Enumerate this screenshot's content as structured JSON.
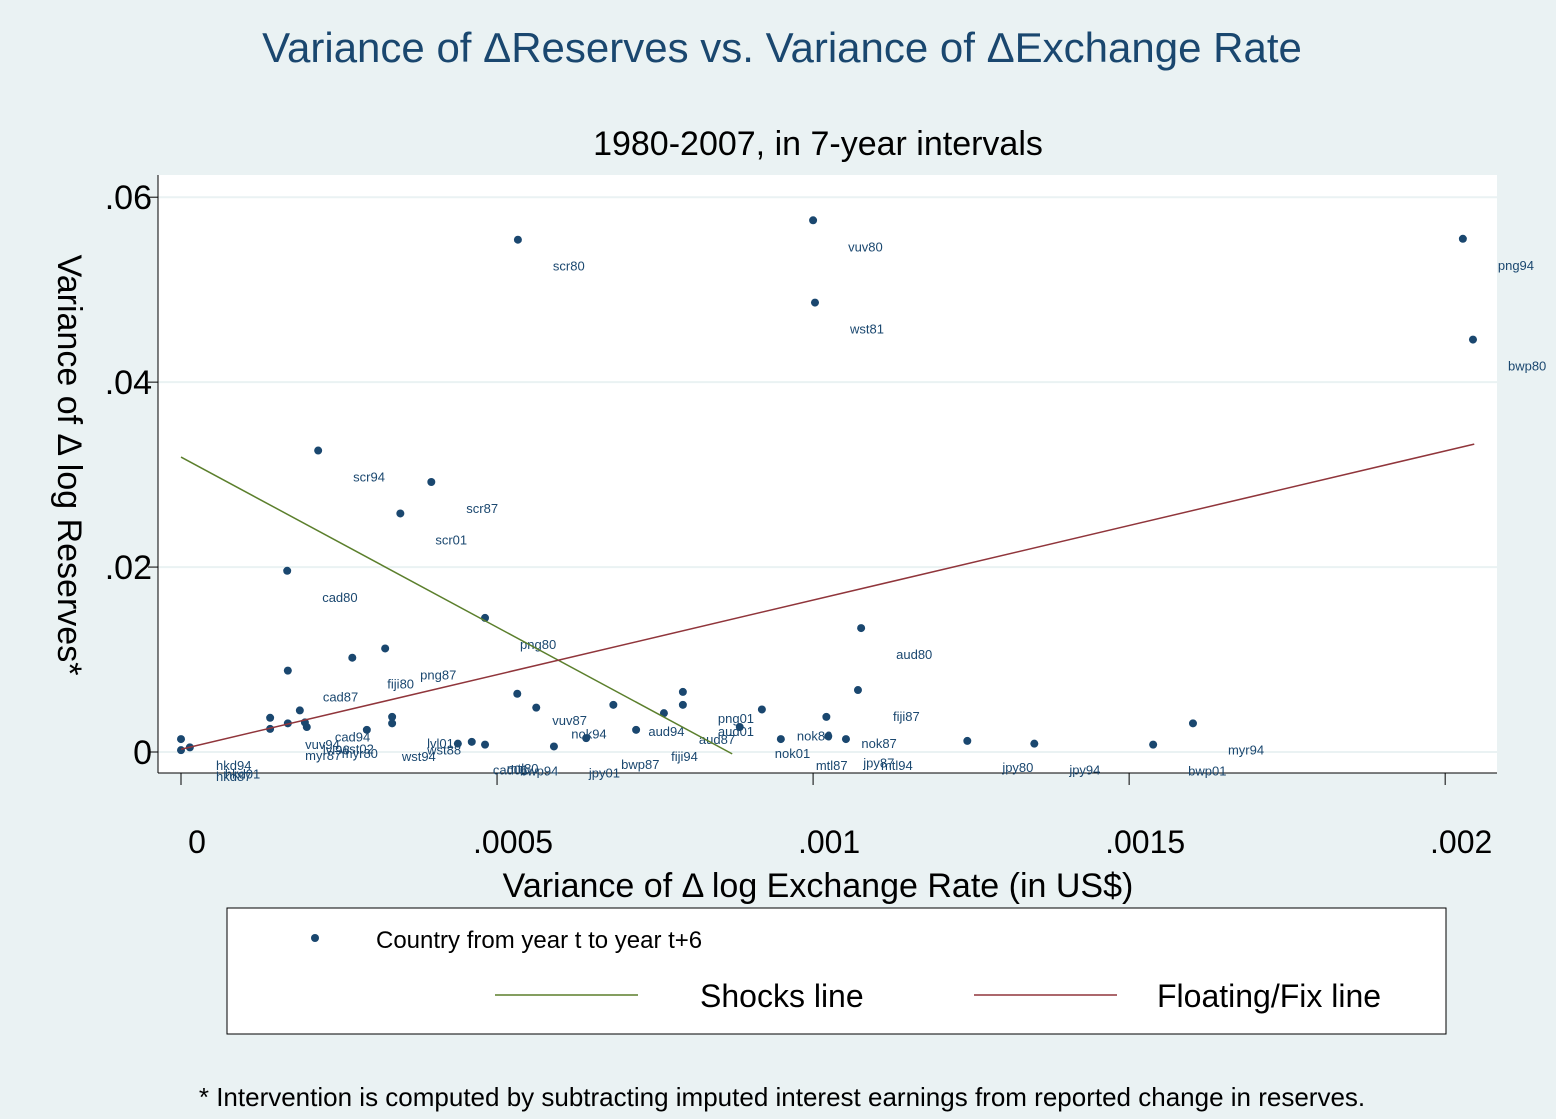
{
  "chart_data": {
    "type": "scatter",
    "title": "Variance of ΔReserves vs. Variance of ΔExchange Rate",
    "subtitle": "1980-2007, in 7-year intervals",
    "x_label": "Variance of Δ log Exchange Rate (in US$)",
    "y_label": "Variance of Δ log Reserves*",
    "note": "* Intervention is computed by subtracting imputed interest earnings from reported change in reserves.",
    "xlim": [
      -3.64e-05,
      0.002082
    ],
    "ylim": [
      -0.00227,
      0.0624
    ],
    "xticks": [
      0,
      {
        "value": 0.0005,
        "label": ".0005"
      },
      {
        "value": 0.001,
        "label": ".001"
      },
      {
        "value": 0.0015,
        "label": ".0015"
      },
      {
        "value": 0.002,
        "label": ".002"
      }
    ],
    "yticks": [
      0,
      {
        "value": 0.02,
        "label": ".02"
      },
      {
        "value": 0.04,
        "label": ".04"
      },
      {
        "value": 0.06,
        "label": ".06"
      }
    ],
    "grid": true,
    "series": [
      {
        "name": "Country from year t to year t+6",
        "color": "#1a476f",
        "mode": "markers",
        "labels": [
          "scr80",
          "vuv80",
          "wst81",
          "png94",
          "bwp80",
          "scr94",
          "scr87",
          "scr01",
          "cad80",
          "png80",
          "aud80",
          "fiji80",
          "png87",
          "cad87",
          "fiji87",
          "vuv87",
          "nok94",
          "aud94",
          "png01",
          "aud01",
          "aud87",
          "nok80",
          "nok01",
          "nok87",
          "myr94",
          "mtl87",
          "jpy87",
          "mtl94",
          "jpy80",
          "jpy94",
          "bwp01",
          "fiji94",
          "bwp87",
          "jpy01",
          "mtl80",
          "cad01",
          "bwp94",
          "lvl01",
          "cad94",
          "vuv94",
          "myr87",
          "myr80",
          "lvl96",
          "wst02",
          "wst94",
          "wst88",
          "hkd94",
          "hkd01",
          "hkd87"
        ],
        "x": [
          0.000533,
          0.001,
          0.001003,
          0.002028,
          0.002044,
          0.000217,
          0.000396,
          0.000347,
          0.000168,
          0.000481,
          0.001076,
          0.000271,
          0.000323,
          0.000169,
          0.001071,
          0.000532,
          0.000562,
          0.000684,
          0.000794,
          0.000794,
          0.000764,
          0.000919,
          0.000884,
          0.001021,
          0.001601,
          0.000949,
          0.001024,
          0.001052,
          0.001244,
          0.00135,
          0.001538,
          0.00072,
          0.000641,
          0.00059,
          0.00046,
          0.000438,
          0.000481,
          0.000334,
          0.000188,
          0.000141,
          0.000141,
          0.000199,
          0.000169,
          0.000196,
          0.000294,
          0.000334,
          0,
          1.4e-05,
          0
        ],
        "values": [
          0.0554,
          0.0575,
          0.0486,
          0.0555,
          0.0446,
          0.0326,
          0.0292,
          0.0258,
          0.0196,
          0.0145,
          0.0134,
          0.0102,
          0.0112,
          0.0088,
          0.0067,
          0.0063,
          0.0048,
          0.0051,
          0.0065,
          0.0051,
          0.0042,
          0.0046,
          0.0027,
          0.0038,
          0.0031,
          0.0014,
          0.0017,
          0.0014,
          0.0012,
          0.0009,
          0.0008,
          0.0024,
          0.0015,
          0.0006,
          0.0011,
          0.0009,
          0.0008,
          0.0038,
          0.0045,
          0.0037,
          0.0025,
          0.0027,
          0.0031,
          0.0032,
          0.0024,
          0.0031,
          0.0014,
          0.0005,
          0.0002
        ]
      },
      {
        "name": "Shocks line",
        "color": "#5b7f2c",
        "mode": "line",
        "x": [
          0,
          0.000872
        ],
        "values": [
          0.0319,
          -0.0002
        ]
      },
      {
        "name": "Floating/Fix line",
        "color": "#90353b",
        "mode": "line",
        "x": [
          0,
          0.002046
        ],
        "values": [
          0.0003,
          0.0333
        ]
      }
    ]
  }
}
